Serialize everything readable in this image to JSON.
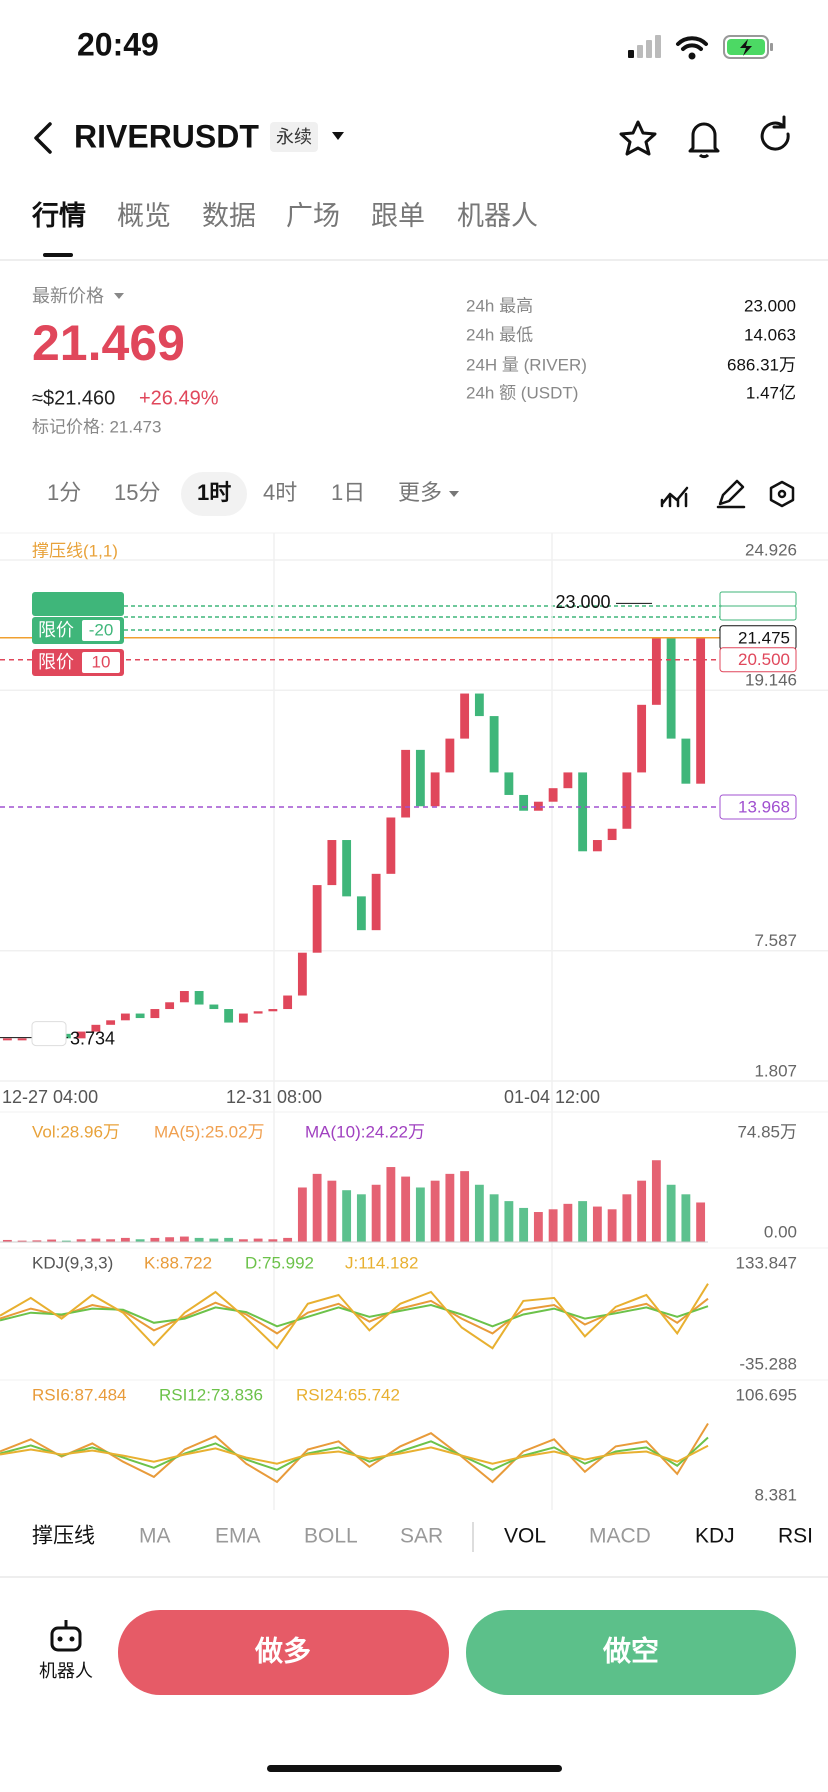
{
  "status_bar": {
    "time": "20:49"
  },
  "header": {
    "symbol": "RIVERUSDT",
    "tag": "永续"
  },
  "tabs": [
    "行情",
    "概览",
    "数据",
    "广场",
    "跟单",
    "机器人"
  ],
  "price": {
    "label": "最新价格",
    "last": "21.469",
    "usd": "≈$21.460",
    "change": "+26.49%",
    "mark": "标记价格: 21.473"
  },
  "stats": [
    {
      "label": "24h  最高",
      "value": "23.000"
    },
    {
      "label": "24h  最低",
      "value": "14.063"
    },
    {
      "label": "24H  量 (RIVER)",
      "value": "686.31万"
    },
    {
      "label": "24h  额 (USDT)",
      "value": "1.47亿"
    }
  ],
  "timeframes": [
    {
      "label": "1分",
      "active": false
    },
    {
      "label": "15分",
      "active": false
    },
    {
      "label": "1时",
      "active": true
    },
    {
      "label": "4时",
      "active": false
    },
    {
      "label": "1日",
      "active": false
    },
    {
      "label": "更多",
      "active": false
    }
  ],
  "chart": {
    "indicator_label": "撑压线(1,1)",
    "price_ticks": [
      24.926,
      19.146,
      7.587,
      1.807
    ],
    "x_labels": [
      "12-27 04:00",
      "12-31 08:00",
      "01-04 12:00"
    ],
    "high_label": {
      "value": 23,
      "label": "23.000"
    },
    "low_label": {
      "value": 3.734,
      "label": "3.734"
    },
    "lines": [
      {
        "value": 21.475,
        "label": "21.475",
        "color": "#f0a030"
      },
      {
        "value": 20.5,
        "label": "20.500",
        "color": "#e0475b"
      },
      {
        "value": 13.968,
        "label": "13.968",
        "color": "#a050d0"
      }
    ],
    "orders": [
      {
        "type": "限价",
        "qty": "-20",
        "color": "#3fb67a"
      },
      {
        "type": "限价",
        "qty": "10",
        "color": "#e0475b"
      }
    ],
    "up_color": "#e0475b",
    "down_color": "#3fb67a",
    "closes": [
      3.7,
      3.7,
      3.8,
      3.9,
      3.7,
      4.0,
      4.3,
      4.5,
      4.8,
      4.6,
      5.0,
      5.3,
      5.8,
      5.2,
      5.0,
      4.4,
      4.8,
      4.9,
      5.0,
      5.6,
      7.5,
      10.5,
      12.5,
      10.0,
      8.5,
      11.0,
      13.5,
      16.5,
      14.0,
      15.5,
      17.0,
      19.0,
      18.0,
      15.5,
      14.5,
      13.8,
      14.2,
      14.8,
      15.5,
      12.0,
      12.5,
      13.0,
      15.5,
      18.5,
      21.5,
      17.0,
      15.0,
      21.5
    ]
  },
  "volume": {
    "labels": [
      {
        "text": "Vol:28.96万",
        "color": "#e8a23a"
      },
      {
        "text": "MA(5):25.02万",
        "color": "#f0a050"
      },
      {
        "text": "MA(10):24.22万",
        "color": "#a040c0"
      }
    ],
    "ticks": [
      {
        "value": 74.85,
        "label": "74.85万"
      },
      {
        "value": 0,
        "label": "0.00"
      }
    ],
    "values": [
      1.5,
      1,
      1.2,
      1.8,
      1,
      2,
      2.5,
      2,
      3,
      2,
      3,
      3.5,
      4,
      3,
      2.5,
      3,
      2,
      2.5,
      2,
      3,
      40,
      50,
      45,
      38,
      35,
      42,
      55,
      48,
      40,
      45,
      50,
      52,
      42,
      35,
      30,
      25,
      22,
      24,
      28,
      30,
      26,
      24,
      35,
      45,
      60,
      42,
      35,
      29
    ]
  },
  "kdj": {
    "title": "KDJ(9,3,3)",
    "ticks": [
      133.847,
      -35.288
    ],
    "series": [
      {
        "name": "K:88.722",
        "color": "#e89b3a",
        "values": [
          55,
          72,
          60,
          78,
          68,
          35,
          58,
          82,
          62,
          30,
          65,
          80,
          50,
          72,
          85,
          55,
          30,
          70,
          78,
          45,
          68,
          80,
          48,
          88.7
        ]
      },
      {
        "name": "D:75.992",
        "color": "#6cc24a",
        "values": [
          52,
          65,
          62,
          72,
          70,
          48,
          55,
          74,
          66,
          42,
          58,
          74,
          58,
          68,
          78,
          62,
          42,
          62,
          72,
          55,
          64,
          74,
          58,
          76
        ]
      },
      {
        "name": "J:114.182",
        "color": "#e8b030",
        "values": [
          60,
          90,
          55,
          95,
          65,
          10,
          65,
          100,
          55,
          5,
          80,
          95,
          35,
          80,
          100,
          40,
          5,
          85,
          90,
          25,
          75,
          95,
          30,
          114
        ]
      }
    ]
  },
  "rsi": {
    "ticks": [
      106.695,
      8.381
    ],
    "series": [
      {
        "name": "RSI6:87.484",
        "color": "#e89b3a",
        "values": [
          60,
          72,
          55,
          68,
          50,
          35,
          62,
          75,
          48,
          30,
          62,
          70,
          45,
          65,
          78,
          55,
          30,
          60,
          72,
          40,
          65,
          70,
          38,
          87.5
        ]
      },
      {
        "name": "RSI12:73.836",
        "color": "#6cc24a",
        "values": [
          58,
          66,
          56,
          64,
          54,
          44,
          58,
          68,
          52,
          42,
          58,
          64,
          50,
          60,
          70,
          56,
          42,
          56,
          64,
          48,
          60,
          64,
          46,
          73.8
        ]
      },
      {
        "name": "RSI24:65.742",
        "color": "#e8b030",
        "values": [
          57,
          62,
          57,
          61,
          56,
          50,
          57,
          63,
          54,
          48,
          57,
          60,
          53,
          58,
          64,
          56,
          48,
          55,
          60,
          52,
          58,
          60,
          50,
          65.7
        ]
      }
    ]
  },
  "indicator_tabs": [
    {
      "label": "撑压线",
      "active": true
    },
    {
      "label": "MA",
      "active": false
    },
    {
      "label": "EMA",
      "active": false
    },
    {
      "label": "BOLL",
      "active": false
    },
    {
      "label": "SAR",
      "active": false
    },
    {
      "label": "VOL",
      "active": true
    },
    {
      "label": "MACD",
      "active": false
    },
    {
      "label": "KDJ",
      "active": true
    },
    {
      "label": "RSI",
      "active": true
    }
  ],
  "bottom": {
    "robot": "机器人",
    "long": "做多",
    "short": "做空"
  }
}
